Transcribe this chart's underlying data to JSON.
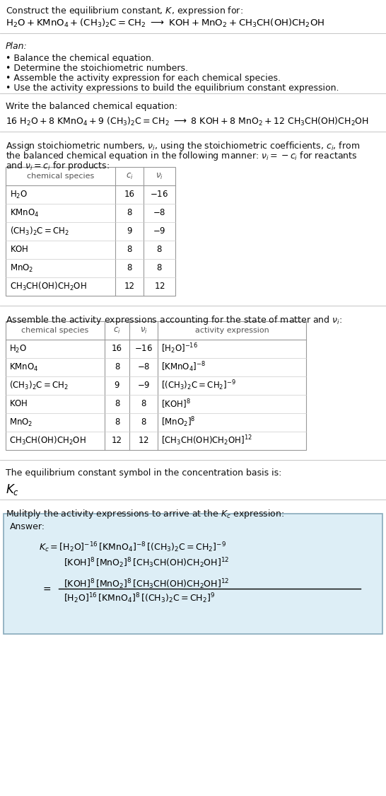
{
  "bg_color": "#ffffff",
  "text_color": "#111111",
  "gray_text": "#444444",
  "section1_line1": "Construct the equilibrium constant, $K$, expression for:",
  "section2_bullets": [
    "Balance the chemical equation.",
    "Determine the stoichiometric numbers.",
    "Assemble the activity expression for each chemical species.",
    "Use the activity expressions to build the equilibrium constant expression."
  ],
  "table1_species": [
    "$\\mathrm{H_2O}$",
    "$\\mathrm{KMnO_4}$",
    "$\\mathrm{(CH_3)_2C{=}CH_2}$",
    "$\\mathrm{KOH}$",
    "$\\mathrm{MnO_2}$",
    "$\\mathrm{CH_3CH(OH)CH_2OH}$"
  ],
  "table1_ci": [
    "16",
    "8",
    "9",
    "8",
    "8",
    "12"
  ],
  "table1_ni": [
    "$-16$",
    "$-8$",
    "$-9$",
    "$8$",
    "$8$",
    "$12$"
  ],
  "table2_ae": [
    "$[\\mathrm{H_2O}]^{-16}$",
    "$[\\mathrm{KMnO_4}]^{-8}$",
    "$[(\\mathrm{CH_3})_2\\mathrm{C{=}CH_2}]^{-9}$",
    "$[\\mathrm{KOH}]^{8}$",
    "$[\\mathrm{MnO_2}]^{8}$",
    "$[\\mathrm{CH_3CH(OH)CH_2OH}]^{12}$"
  ],
  "answer_box_color": "#ddeef6",
  "answer_border_color": "#88aabb",
  "fs_title": 9.5,
  "fs_body": 9.0,
  "fs_table": 8.5,
  "fs_math": 9.0
}
